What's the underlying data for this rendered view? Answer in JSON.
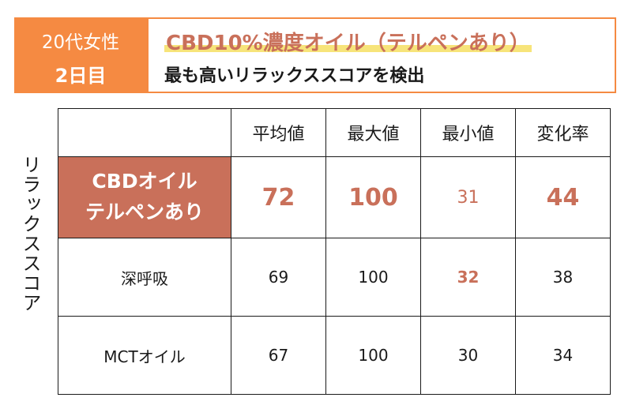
{
  "header": {
    "badge_line1": "20代女性",
    "badge_line2": "2日目",
    "title": "CBD10%濃度オイル（テルペンあり）",
    "subtitle": "最も高いリラックススコアを検出"
  },
  "side_label": "リラックススコア",
  "table": {
    "columns": [
      "",
      "平均値",
      "最大値",
      "最小値",
      "変化率"
    ],
    "rows": [
      {
        "label_line1": "CBDオイル",
        "label_line2": "テルペンあり",
        "values": [
          "72",
          "100",
          "31",
          "44"
        ]
      },
      {
        "label": "深呼吸",
        "values": [
          "69",
          "100",
          "32",
          "38"
        ]
      },
      {
        "label": "MCTオイル",
        "values": [
          "67",
          "100",
          "30",
          "34"
        ]
      }
    ]
  },
  "colors": {
    "accent_orange": "#f58a42",
    "highlight_rose": "#c9705a",
    "title_underline": "#f7e47a"
  }
}
